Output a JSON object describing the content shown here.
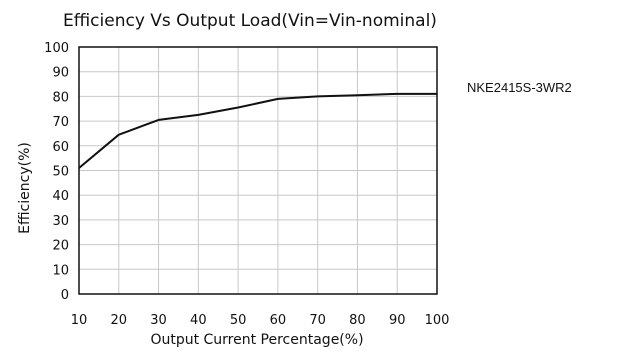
{
  "chart_data": {
    "type": "line",
    "title": "Efficiency Vs Output Load(Vin=Vin-nominal)",
    "xlabel": "Output Current Percentage(%)",
    "ylabel": "Efficiency(%)",
    "x": [
      10,
      20,
      30,
      40,
      50,
      60,
      70,
      80,
      90,
      100
    ],
    "xlim": [
      10,
      100
    ],
    "ylim": [
      0,
      100
    ],
    "x_ticks": [
      "10",
      "20",
      "30",
      "40",
      "50",
      "60",
      "70",
      "80",
      "90",
      "100"
    ],
    "y_ticks": [
      "0",
      "10",
      "20",
      "30",
      "40",
      "50",
      "60",
      "70",
      "80",
      "90",
      "100"
    ],
    "grid": true,
    "series": [
      {
        "name": "NKE2415S-3WR2",
        "values": [
          51,
          64.5,
          70.5,
          72.5,
          75.5,
          79,
          80,
          80.5,
          81,
          81
        ],
        "color": "#111111"
      }
    ],
    "legend_position": "right",
    "grid_color": "#c8c8c8",
    "axis_color": "#111111"
  }
}
